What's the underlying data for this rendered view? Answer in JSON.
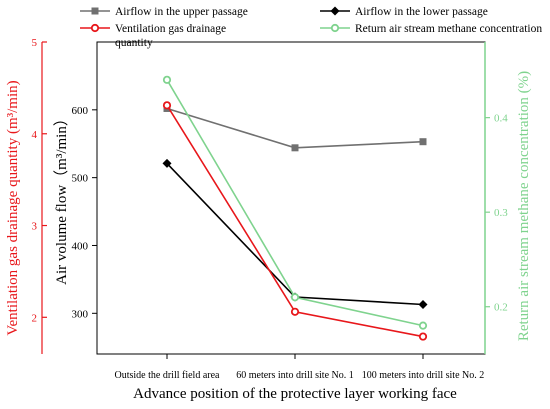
{
  "chart_data": {
    "type": "line",
    "xlabel": "Advance position of the protective layer working face",
    "categories": [
      "Outside the drill field area",
      "60 meters into drill site No. 1",
      "100 meters into drill site No. 2"
    ],
    "axes": {
      "y_air": {
        "label": "Air volume flow（m³/min）",
        "range": [
          240,
          700
        ],
        "ticks": [
          300,
          400,
          500,
          600
        ],
        "color": "#000000"
      },
      "y_gas": {
        "label": "Ventilation gas drainage quantity (m³/min)",
        "range": [
          1.6,
          5.0
        ],
        "ticks": [
          2,
          3,
          4,
          5
        ],
        "color": "#e8171b"
      },
      "y_methane": {
        "label": "Return air stream methane concentration (%)",
        "range": [
          0.15,
          0.48
        ],
        "ticks": [
          0.2,
          0.3,
          0.4
        ],
        "color": "#7fd38e"
      }
    },
    "series": [
      {
        "name": "Airflow in the upper passage",
        "axis": "y_air",
        "values": [
          602,
          544,
          553
        ],
        "color": "#707070",
        "marker": "square"
      },
      {
        "name": "Airflow in the lower passage",
        "axis": "y_air",
        "values": [
          521,
          324,
          313
        ],
        "color": "#000000",
        "marker": "diamond"
      },
      {
        "name": "Ventilation gas drainage quantity",
        "axis": "y_gas",
        "values": [
          4.31,
          2.06,
          1.79
        ],
        "color": "#e8171b",
        "marker": "circle"
      },
      {
        "name": "Return air stream methane concentration",
        "axis": "y_methane",
        "values": [
          0.44,
          0.21,
          0.18
        ],
        "color": "#7fd38e",
        "marker": "circle"
      }
    ]
  }
}
